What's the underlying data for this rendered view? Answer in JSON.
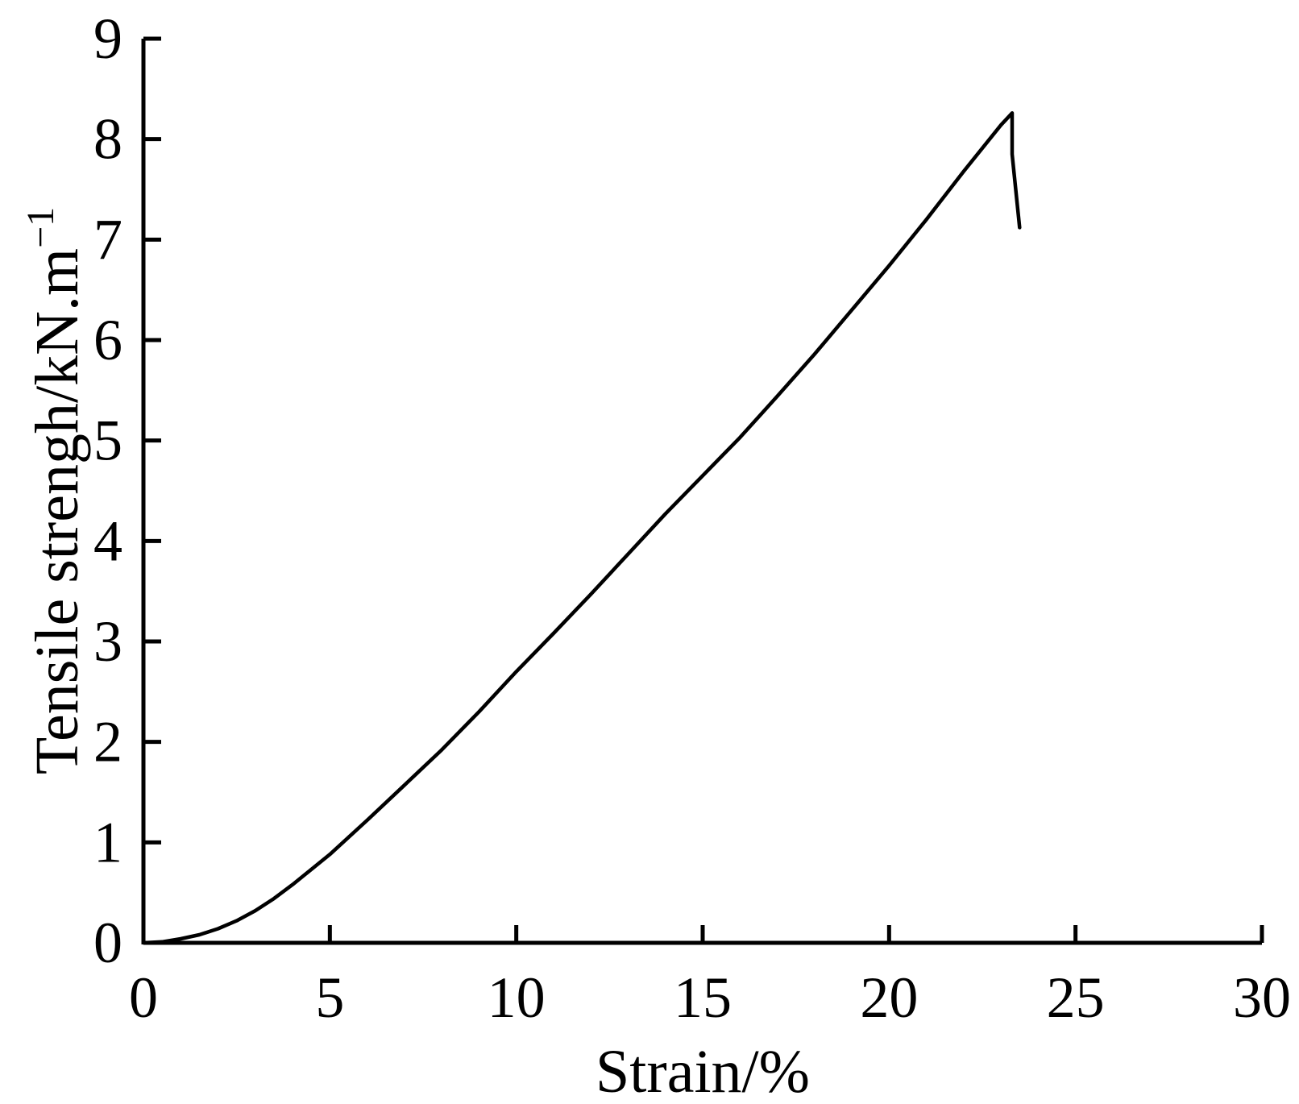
{
  "chart_data": {
    "type": "line",
    "title": "",
    "xlabel": "Strain/%",
    "ylabel": "Tensile strengh/kN.m",
    "ylabel_superscript": "−1",
    "xlim": [
      0,
      30
    ],
    "ylim": [
      0,
      9
    ],
    "xticks": [
      0,
      5,
      10,
      15,
      20,
      25,
      30
    ],
    "yticks": [
      0,
      1,
      2,
      3,
      4,
      5,
      6,
      7,
      8,
      9
    ],
    "xtick_labels": [
      "0",
      "5",
      "10",
      "15",
      "20",
      "25",
      "30"
    ],
    "ytick_labels": [
      "0",
      "1",
      "2",
      "3",
      "4",
      "5",
      "6",
      "7",
      "8",
      "9"
    ],
    "grid": false,
    "legend": "none",
    "line_color": "#000000",
    "series": [
      {
        "x": [
          0,
          0.5,
          1,
          1.5,
          2,
          2.5,
          3,
          3.5,
          4,
          4.5,
          5,
          6,
          7,
          8,
          9,
          10,
          11,
          12,
          13,
          14,
          15,
          16,
          17,
          18,
          19,
          20,
          21,
          22,
          23,
          23.3,
          23.3,
          23.5
        ],
        "y": [
          0,
          0.01,
          0.04,
          0.08,
          0.14,
          0.22,
          0.32,
          0.44,
          0.58,
          0.73,
          0.88,
          1.22,
          1.57,
          1.92,
          2.3,
          2.7,
          3.08,
          3.47,
          3.87,
          4.27,
          4.65,
          5.03,
          5.44,
          5.86,
          6.3,
          6.74,
          7.2,
          7.68,
          8.14,
          8.26,
          7.85,
          7.12
        ]
      }
    ]
  }
}
